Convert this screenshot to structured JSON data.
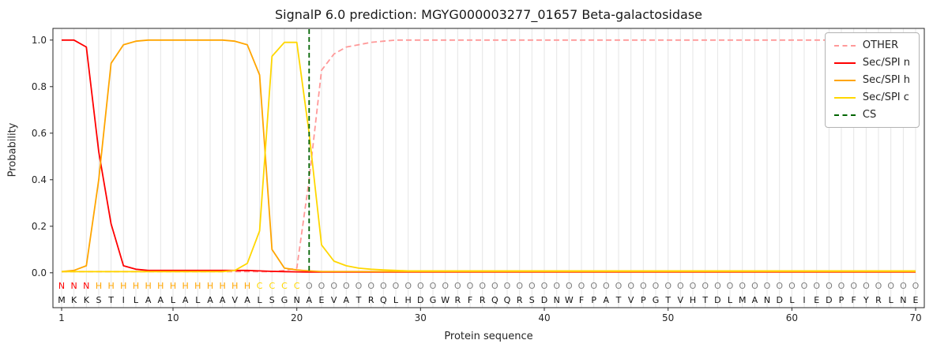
{
  "chart_data": {
    "type": "line",
    "title": "SignalP 6.0 prediction: MGYG000003277_01657 Beta-galactosidase",
    "xlabel": "Protein sequence",
    "ylabel": "Probability",
    "xlim": [
      0.3,
      70.7
    ],
    "ylim": [
      -0.15,
      1.05
    ],
    "x_range": [
      1,
      70
    ],
    "xticks": [
      1,
      10,
      20,
      30,
      40,
      50,
      60,
      70
    ],
    "yticks": [
      0.0,
      0.2,
      0.4,
      0.6,
      0.8,
      1.0
    ],
    "grid": "vertical-per-residue",
    "legend_position": "upper right",
    "series": [
      {
        "name": "OTHER",
        "color": "#ff9999",
        "dash": true,
        "values": [
          0.005,
          0.005,
          0.005,
          0.005,
          0.005,
          0.005,
          0.005,
          0.005,
          0.005,
          0.005,
          0.005,
          0.005,
          0.005,
          0.005,
          0.005,
          0.005,
          0.005,
          0.005,
          0.01,
          0.02,
          0.4,
          0.87,
          0.94,
          0.97,
          0.98,
          0.99,
          0.995,
          1.0,
          1.0,
          1.0,
          1.0,
          1.0,
          1.0,
          1.0,
          1.0,
          1.0,
          1.0,
          1.0,
          1.0,
          1.0,
          1.0,
          1.0,
          1.0,
          1.0,
          1.0,
          1.0,
          1.0,
          1.0,
          1.0,
          1.0,
          1.0,
          1.0,
          1.0,
          1.0,
          1.0,
          1.0,
          1.0,
          1.0,
          1.0,
          1.0,
          1.0,
          1.0,
          1.0,
          1.0,
          1.0,
          1.0,
          1.0,
          1.0,
          1.0,
          1.0
        ]
      },
      {
        "name": "Sec/SPI n",
        "color": "#ff0000",
        "dash": false,
        "values": [
          1.0,
          1.0,
          0.97,
          0.52,
          0.21,
          0.03,
          0.015,
          0.01,
          0.01,
          0.01,
          0.01,
          0.01,
          0.01,
          0.01,
          0.01,
          0.01,
          0.008,
          0.006,
          0.005,
          0.004,
          0.003,
          0.003,
          0.003,
          0.003,
          0.003,
          0.003,
          0.003,
          0.003,
          0.003,
          0.003,
          0.003,
          0.003,
          0.003,
          0.003,
          0.003,
          0.003,
          0.003,
          0.003,
          0.003,
          0.003,
          0.003,
          0.003,
          0.003,
          0.003,
          0.003,
          0.003,
          0.003,
          0.003,
          0.003,
          0.003,
          0.003,
          0.003,
          0.003,
          0.003,
          0.003,
          0.003,
          0.003,
          0.003,
          0.003,
          0.003,
          0.003,
          0.003,
          0.003,
          0.003,
          0.003,
          0.003,
          0.003,
          0.003,
          0.003,
          0.003
        ]
      },
      {
        "name": "Sec/SPI h",
        "color": "#ffa500",
        "dash": false,
        "values": [
          0.005,
          0.01,
          0.03,
          0.4,
          0.9,
          0.98,
          0.995,
          1.0,
          1.0,
          1.0,
          1.0,
          1.0,
          1.0,
          1.0,
          0.995,
          0.98,
          0.85,
          0.1,
          0.02,
          0.012,
          0.008,
          0.005,
          0.005,
          0.005,
          0.005,
          0.005,
          0.005,
          0.005,
          0.005,
          0.005,
          0.005,
          0.005,
          0.005,
          0.005,
          0.005,
          0.005,
          0.005,
          0.005,
          0.005,
          0.005,
          0.005,
          0.005,
          0.005,
          0.005,
          0.005,
          0.005,
          0.005,
          0.005,
          0.005,
          0.005,
          0.005,
          0.005,
          0.005,
          0.005,
          0.005,
          0.005,
          0.005,
          0.005,
          0.005,
          0.005,
          0.005,
          0.005,
          0.005,
          0.005,
          0.005,
          0.005,
          0.005,
          0.005,
          0.005,
          0.005
        ]
      },
      {
        "name": "Sec/SPI c",
        "color": "#ffd700",
        "dash": false,
        "values": [
          0.005,
          0.005,
          0.005,
          0.005,
          0.005,
          0.005,
          0.005,
          0.005,
          0.005,
          0.005,
          0.005,
          0.005,
          0.005,
          0.005,
          0.01,
          0.04,
          0.18,
          0.93,
          0.99,
          0.99,
          0.6,
          0.12,
          0.05,
          0.03,
          0.02,
          0.015,
          0.012,
          0.01,
          0.008,
          0.008,
          0.008,
          0.008,
          0.008,
          0.008,
          0.008,
          0.008,
          0.008,
          0.008,
          0.008,
          0.008,
          0.008,
          0.008,
          0.008,
          0.008,
          0.008,
          0.008,
          0.008,
          0.008,
          0.008,
          0.008,
          0.008,
          0.008,
          0.008,
          0.008,
          0.008,
          0.008,
          0.008,
          0.008,
          0.008,
          0.008,
          0.008,
          0.008,
          0.008,
          0.008,
          0.008,
          0.008,
          0.008,
          0.008,
          0.008,
          0.008
        ]
      }
    ],
    "cs_line": {
      "name": "CS",
      "x": 21,
      "color": "#006400",
      "dash": true
    },
    "sequence": "MKKSTILAALALAAVALSGNAEVATRQLHDGWRFRQQRSDNWFPATVPGTVHTDLMANDLIEDPFYRLNE",
    "region_labels": "NNNHHHHHHHHHHHHHCCCCOOOOOOOOOOOOOOOOOOOOOOOOOOOOOOOOOOOOOOOOOOOOOOOOOO",
    "region_colors": {
      "N": "#ff0000",
      "H": "#ffa500",
      "C": "#ffd700",
      "O": "#808080"
    },
    "legend_items": [
      {
        "label": "OTHER",
        "color": "#ff9999",
        "style": "dashed"
      },
      {
        "label": "Sec/SPI n",
        "color": "#ff0000",
        "style": "solid"
      },
      {
        "label": "Sec/SPI h",
        "color": "#ffa500",
        "style": "solid"
      },
      {
        "label": "Sec/SPI c",
        "color": "#ffd700",
        "style": "solid"
      },
      {
        "label": "CS",
        "color": "#006400",
        "style": "dashed"
      }
    ]
  }
}
